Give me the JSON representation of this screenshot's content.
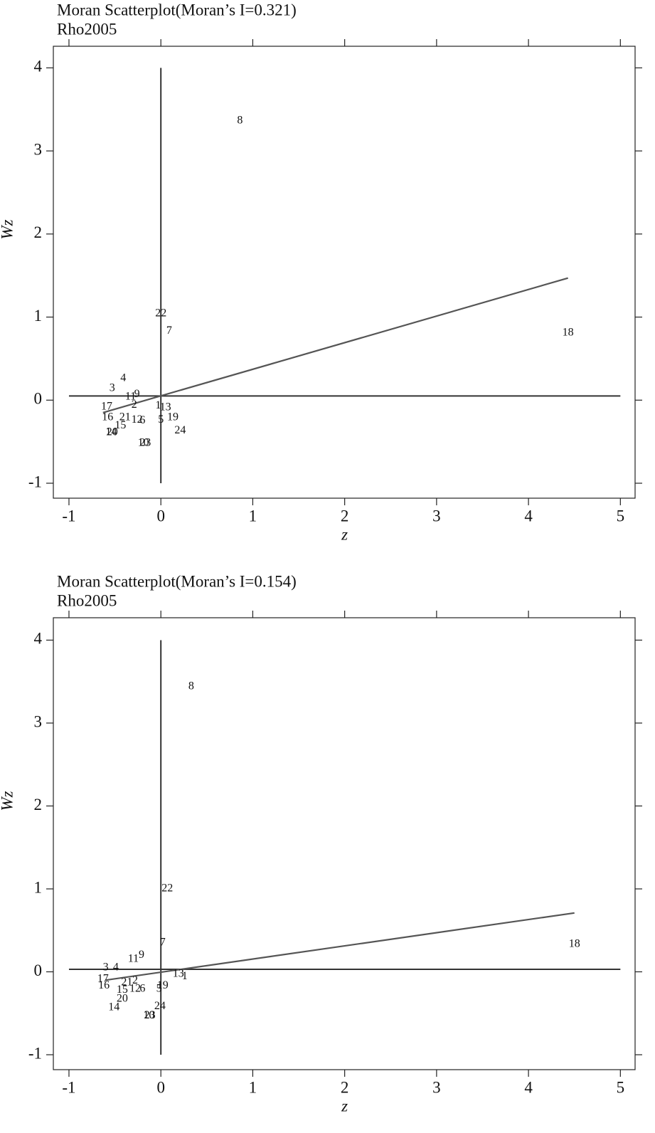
{
  "chart_data": [
    {
      "type": "scatter",
      "title": "Moran Scatterplot(Moran’s I=0.321)",
      "subtitle": "Rho2005",
      "x_label": "z",
      "y_label": "Wz",
      "point_labels": [
        "8",
        "22",
        "7",
        "18",
        "4",
        "3",
        "11",
        "9",
        "2",
        "17",
        "1",
        "13",
        "16",
        "21",
        "12",
        "6",
        "5",
        "19",
        "15",
        "24",
        "14",
        "20",
        "10",
        "23"
      ],
      "x": [
        0.86,
        0.0,
        0.09,
        4.43,
        -0.41,
        -0.53,
        -0.33,
        -0.26,
        -0.29,
        -0.59,
        -0.03,
        0.05,
        -0.58,
        -0.39,
        -0.26,
        -0.2,
        0.0,
        0.13,
        -0.44,
        0.21,
        -0.54,
        -0.53,
        -0.19,
        -0.17
      ],
      "values": [
        3.36,
        1.04,
        0.83,
        0.81,
        0.26,
        0.14,
        0.04,
        0.07,
        -0.06,
        -0.08,
        -0.07,
        -0.09,
        -0.21,
        -0.21,
        -0.24,
        -0.25,
        -0.24,
        -0.21,
        -0.31,
        -0.37,
        -0.39,
        -0.39,
        -0.52,
        -0.52
      ],
      "fit_line": {
        "x": [
          -0.63,
          4.43
        ],
        "y": [
          -0.15,
          1.47
        ]
      },
      "ref_lines": {
        "x": 0,
        "y": 0.05
      },
      "xlim": [
        -1.17,
        5.16
      ],
      "ylim": [
        -1.18,
        4.26
      ],
      "xticks": [
        -1,
        0,
        1,
        2,
        3,
        4,
        5
      ],
      "yticks": [
        -1,
        0,
        1,
        2,
        3,
        4
      ]
    },
    {
      "type": "scatter",
      "title": "Moran Scatterplot(Moran’s I=0.154)",
      "subtitle": "Rho2005",
      "x_label": "z",
      "y_label": "Wz",
      "point_labels": [
        "8",
        "22",
        "7",
        "18",
        "11",
        "9",
        "3",
        "4",
        "17",
        "13",
        "1",
        "16",
        "21",
        "2",
        "15",
        "12",
        "6",
        "19",
        "5",
        "20",
        "14",
        "24",
        "10",
        "23"
      ],
      "x": [
        0.33,
        0.07,
        0.02,
        4.5,
        -0.3,
        -0.21,
        -0.6,
        -0.49,
        -0.63,
        0.19,
        0.26,
        -0.62,
        -0.37,
        -0.28,
        -0.42,
        -0.28,
        -0.2,
        0.02,
        -0.02,
        -0.42,
        -0.51,
        -0.01,
        -0.13,
        -0.12
      ],
      "values": [
        3.44,
        1.0,
        0.35,
        0.33,
        0.15,
        0.2,
        0.05,
        0.05,
        -0.09,
        -0.03,
        -0.06,
        -0.17,
        -0.13,
        -0.11,
        -0.22,
        -0.21,
        -0.21,
        -0.17,
        -0.21,
        -0.33,
        -0.43,
        -0.42,
        -0.53,
        -0.53
      ],
      "fit_line": {
        "x": [
          -0.6,
          4.5
        ],
        "y": [
          -0.1,
          0.71
        ]
      },
      "ref_lines": {
        "x": 0,
        "y": 0.03
      },
      "xlim": [
        -1.17,
        5.16
      ],
      "ylim": [
        -1.18,
        4.27
      ],
      "xticks": [
        -1,
        0,
        1,
        2,
        3,
        4,
        5
      ],
      "yticks": [
        -1,
        0,
        1,
        2,
        3,
        4
      ]
    }
  ]
}
